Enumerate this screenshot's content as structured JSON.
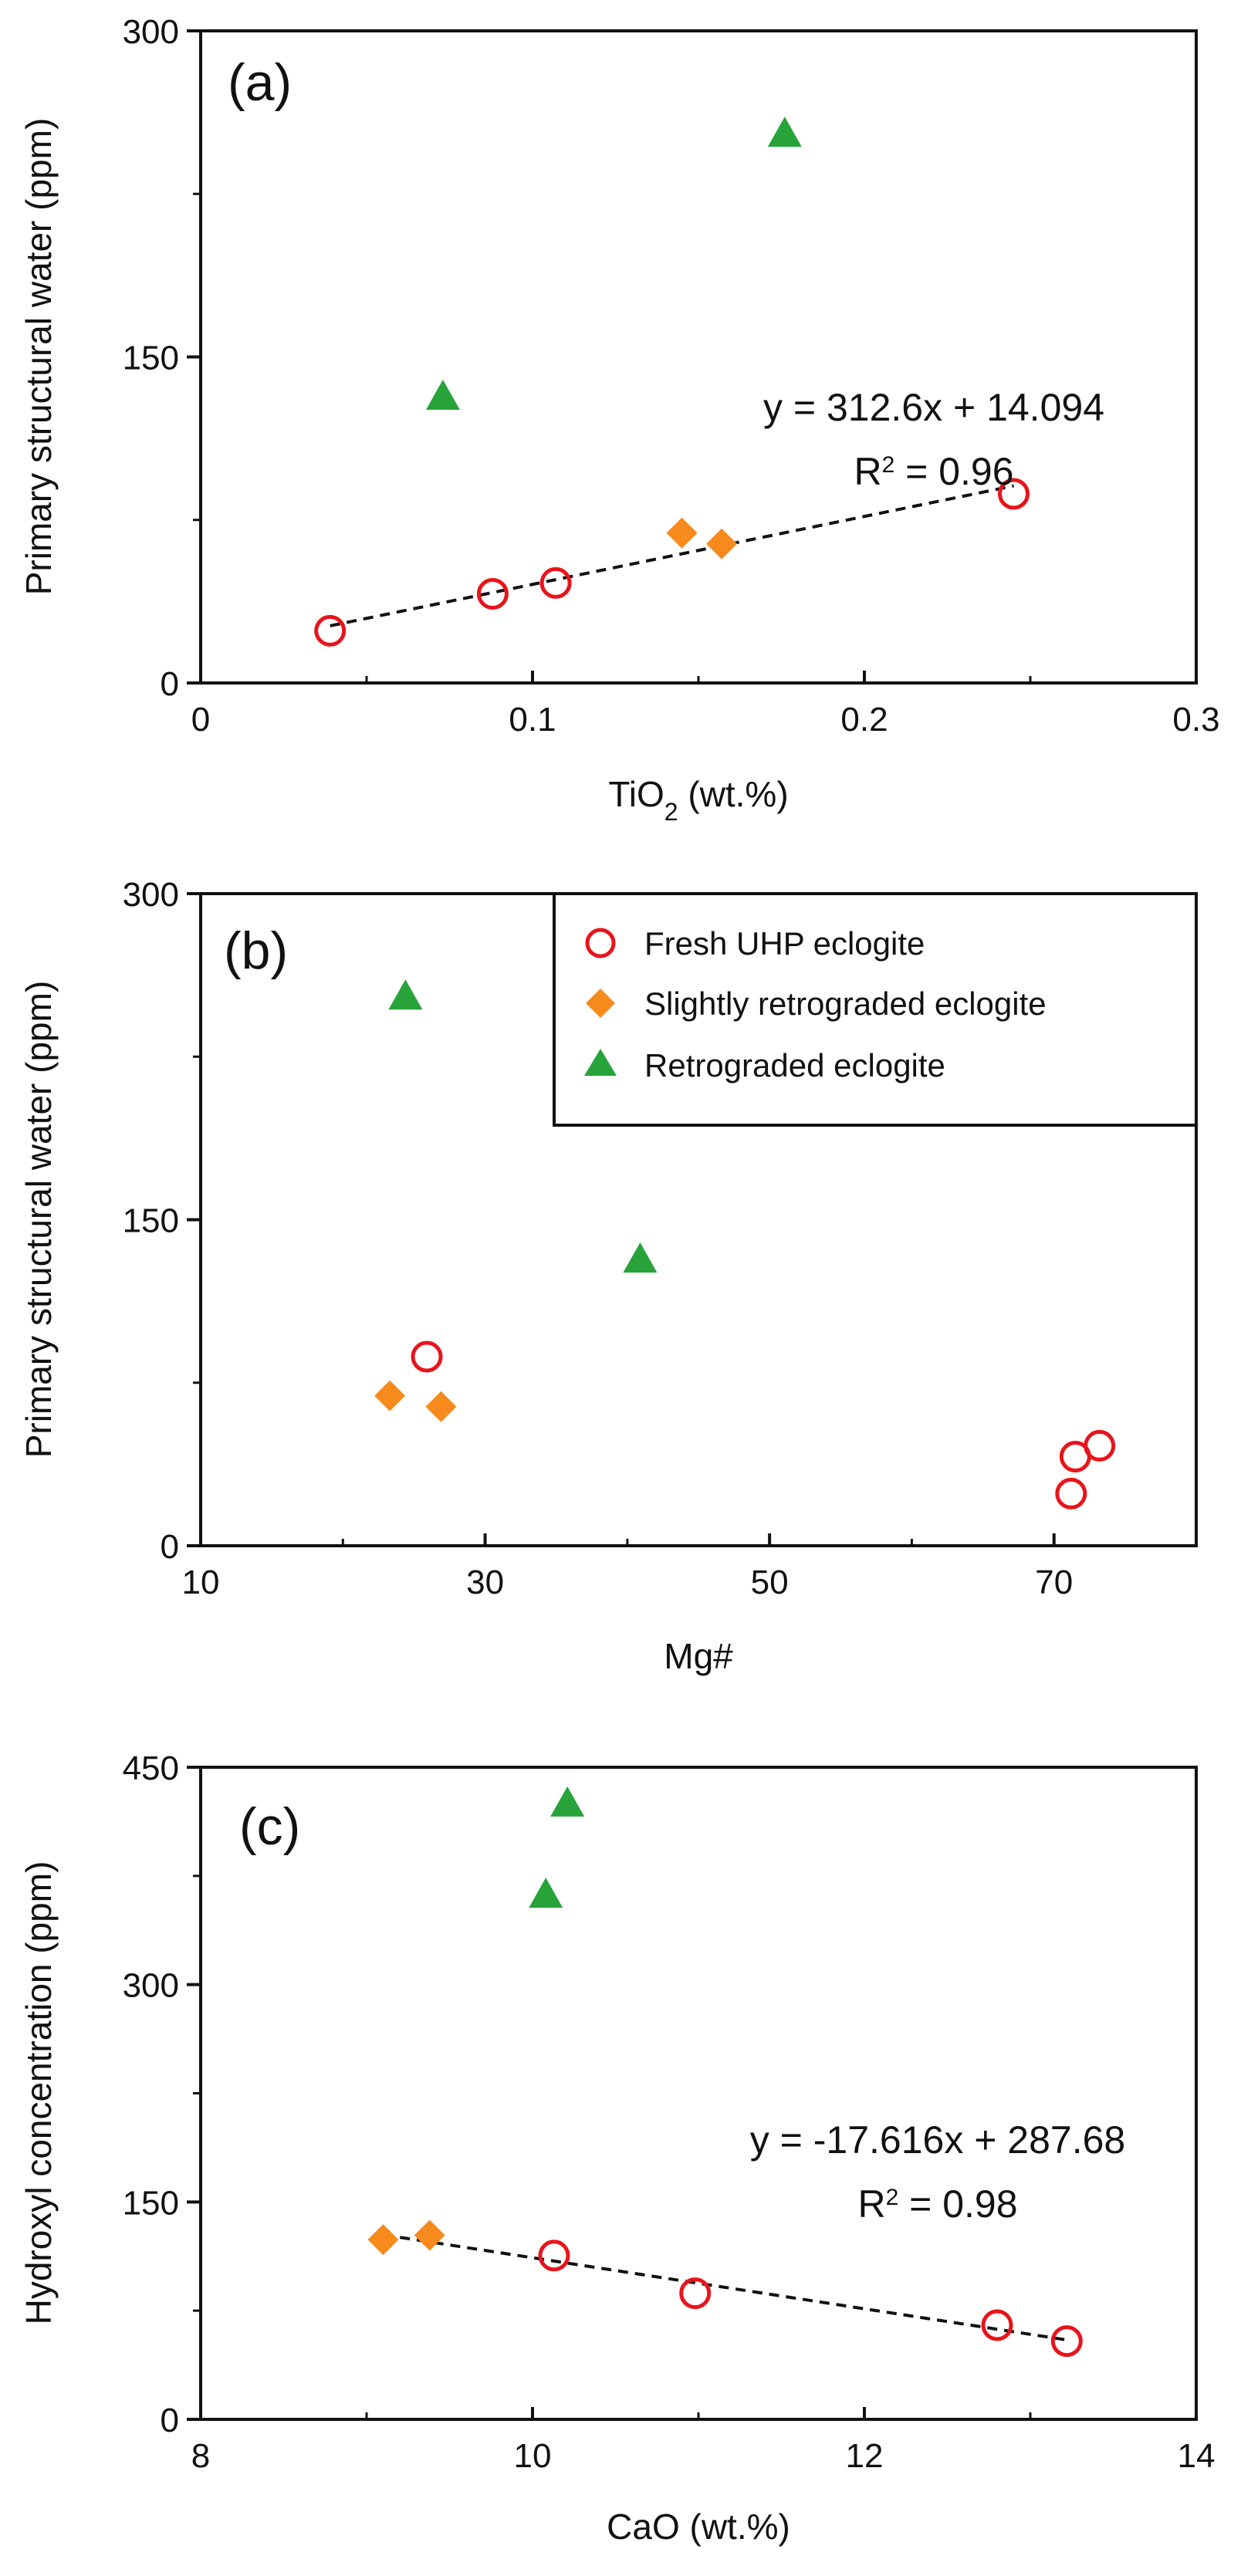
{
  "colors": {
    "fresh": "#e8141b",
    "slight": "#f78a1c",
    "retro": "#27a33a"
  },
  "chart_data": [
    {
      "type": "scatter",
      "panel": "(a)",
      "xlabel": "TiO2 (wt.%)",
      "ylabel": "Primary structural water (ppm)",
      "xlim": [
        0,
        0.3
      ],
      "ylim": [
        0,
        300
      ],
      "xticks": [
        0,
        0.1,
        0.2,
        0.3
      ],
      "xtick_labels": [
        "0",
        "0.1",
        "0.2",
        "0.3"
      ],
      "yticks": [
        0,
        150,
        300
      ],
      "ytick_labels": [
        "0",
        "150",
        "300"
      ],
      "series": [
        {
          "name": "Fresh UHP eclogite",
          "marker": "circle",
          "points": [
            [
              0.039,
              24
            ],
            [
              0.088,
              41
            ],
            [
              0.107,
              46
            ],
            [
              0.245,
              87
            ]
          ]
        },
        {
          "name": "Slightly retrograded eclogite",
          "marker": "diamond",
          "points": [
            [
              0.145,
              69
            ],
            [
              0.157,
              64
            ]
          ]
        },
        {
          "name": "Retrograded eclogite",
          "marker": "triangle",
          "points": [
            [
              0.073,
              131
            ],
            [
              0.176,
              252
            ]
          ]
        }
      ],
      "fit": {
        "x": [
          0.039,
          0.245
        ],
        "equation": "y = 312.6x + 14.094",
        "r2_label": "R",
        "r2_exp": "2",
        "r2_value": " = 0.96"
      }
    },
    {
      "type": "scatter",
      "panel": "(b)",
      "xlabel": "Mg#",
      "ylabel": "Primary structural water (ppm)",
      "xlim": [
        10,
        80
      ],
      "ylim": [
        0,
        300
      ],
      "xticks": [
        10,
        30,
        50,
        70
      ],
      "xtick_labels": [
        "10",
        "30",
        "50",
        "70"
      ],
      "yticks": [
        0,
        150,
        300
      ],
      "ytick_labels": [
        "0",
        "150",
        "300"
      ],
      "series": [
        {
          "name": "Fresh UHP eclogite",
          "marker": "circle",
          "points": [
            [
              25.9,
              87
            ],
            [
              71.2,
              24
            ],
            [
              71.5,
              41
            ],
            [
              73.2,
              46
            ]
          ]
        },
        {
          "name": "Slightly retrograded eclogite",
          "marker": "diamond",
          "points": [
            [
              23.3,
              69
            ],
            [
              26.9,
              64
            ]
          ]
        },
        {
          "name": "Retrograded eclogite",
          "marker": "triangle",
          "points": [
            [
              24.4,
              252
            ],
            [
              40.9,
              131
            ]
          ]
        }
      ],
      "legend": [
        "Fresh UHP eclogite",
        "Slightly retrograded eclogite",
        "Retrograded  eclogite"
      ]
    },
    {
      "type": "scatter",
      "panel": "(c)",
      "xlabel": "CaO (wt.%)",
      "ylabel": "Hydroxyl concentration (ppm)",
      "xlim": [
        8,
        14
      ],
      "ylim": [
        0,
        450
      ],
      "xticks": [
        8,
        10,
        12,
        14
      ],
      "xtick_labels": [
        "8",
        "10",
        "12",
        "14"
      ],
      "yticks": [
        0,
        150,
        300,
        450
      ],
      "ytick_labels": [
        "0",
        "150",
        "300",
        "450"
      ],
      "series": [
        {
          "name": "Fresh UHP eclogite",
          "marker": "circle",
          "points": [
            [
              10.13,
              113
            ],
            [
              10.98,
              87
            ],
            [
              12.8,
              65
            ],
            [
              13.22,
              54
            ]
          ]
        },
        {
          "name": "Slightly retrograded eclogite",
          "marker": "diamond",
          "points": [
            [
              9.1,
              124
            ],
            [
              9.38,
              127
            ]
          ]
        },
        {
          "name": "Retrograded eclogite",
          "marker": "triangle",
          "points": [
            [
              10.08,
              361
            ],
            [
              10.21,
              424
            ]
          ]
        }
      ],
      "fit": {
        "x": [
          9.1,
          13.22
        ],
        "equation": "y = -17.616x + 287.68",
        "r2_label": "R",
        "r2_exp": "2",
        "r2_value": " = 0.98"
      }
    }
  ]
}
